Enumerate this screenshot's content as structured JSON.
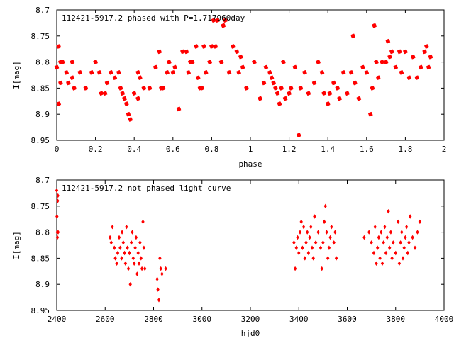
{
  "chart_data": [
    {
      "type": "scatter",
      "title": "112421-5917.2 phased with P=1.717960day",
      "xlabel": "phase",
      "ylabel": "I[mag]",
      "xlim": [
        0,
        2
      ],
      "ylim": [
        8.95,
        8.7
      ],
      "y_inverted": true,
      "grid": false,
      "marker_color": "#ff0000",
      "x_ticks": [
        "0",
        "0.2",
        "0.4",
        "0.6",
        "0.8",
        "1",
        "1.2",
        "1.4",
        "1.6",
        "1.8",
        "2"
      ],
      "y_ticks": [
        "8.7",
        "8.75",
        "8.8",
        "8.85",
        "8.9",
        "8.95"
      ],
      "points": [
        [
          0.0,
          8.81
        ],
        [
          0.01,
          8.77
        ],
        [
          0.01,
          8.88
        ],
        [
          0.02,
          8.8
        ],
        [
          0.02,
          8.84
        ],
        [
          0.03,
          8.8
        ],
        [
          0.05,
          8.82
        ],
        [
          0.06,
          8.84
        ],
        [
          0.08,
          8.83
        ],
        [
          0.08,
          8.8
        ],
        [
          0.09,
          8.85
        ],
        [
          0.12,
          8.82
        ],
        [
          0.15,
          8.85
        ],
        [
          0.18,
          8.82
        ],
        [
          0.2,
          8.8
        ],
        [
          0.22,
          8.82
        ],
        [
          0.23,
          8.86
        ],
        [
          0.25,
          8.86
        ],
        [
          0.26,
          8.84
        ],
        [
          0.28,
          8.82
        ],
        [
          0.3,
          8.83
        ],
        [
          0.32,
          8.82
        ],
        [
          0.33,
          8.85
        ],
        [
          0.34,
          8.86
        ],
        [
          0.35,
          8.87
        ],
        [
          0.36,
          8.88
        ],
        [
          0.37,
          8.9
        ],
        [
          0.38,
          8.91
        ],
        [
          0.4,
          8.86
        ],
        [
          0.42,
          8.82
        ],
        [
          0.42,
          8.87
        ],
        [
          0.43,
          8.83
        ],
        [
          0.45,
          8.85
        ],
        [
          0.48,
          8.85
        ],
        [
          0.51,
          8.81
        ],
        [
          0.53,
          8.78
        ],
        [
          0.54,
          8.85
        ],
        [
          0.55,
          8.85
        ],
        [
          0.57,
          8.82
        ],
        [
          0.58,
          8.8
        ],
        [
          0.6,
          8.82
        ],
        [
          0.61,
          8.81
        ],
        [
          0.63,
          8.89
        ],
        [
          0.65,
          8.78
        ],
        [
          0.67,
          8.78
        ],
        [
          0.68,
          8.82
        ],
        [
          0.69,
          8.8
        ],
        [
          0.7,
          8.8
        ],
        [
          0.72,
          8.77
        ],
        [
          0.73,
          8.83
        ],
        [
          0.74,
          8.85
        ],
        [
          0.75,
          8.85
        ],
        [
          0.76,
          8.77
        ],
        [
          0.77,
          8.82
        ],
        [
          0.79,
          8.8
        ],
        [
          0.8,
          8.77
        ],
        [
          0.81,
          8.72
        ],
        [
          0.82,
          8.77
        ],
        [
          0.83,
          8.72
        ],
        [
          0.85,
          8.8
        ],
        [
          0.86,
          8.73
        ],
        [
          0.87,
          8.72
        ],
        [
          0.89,
          8.82
        ],
        [
          0.91,
          8.77
        ],
        [
          0.93,
          8.78
        ],
        [
          0.94,
          8.82
        ],
        [
          0.95,
          8.79
        ],
        [
          0.96,
          8.81
        ],
        [
          0.98,
          8.85
        ],
        [
          1.02,
          8.8
        ],
        [
          1.05,
          8.87
        ],
        [
          1.07,
          8.84
        ],
        [
          1.08,
          8.81
        ],
        [
          1.1,
          8.82
        ],
        [
          1.11,
          8.83
        ],
        [
          1.12,
          8.84
        ],
        [
          1.13,
          8.85
        ],
        [
          1.14,
          8.86
        ],
        [
          1.15,
          8.88
        ],
        [
          1.16,
          8.85
        ],
        [
          1.17,
          8.8
        ],
        [
          1.18,
          8.87
        ],
        [
          1.2,
          8.86
        ],
        [
          1.21,
          8.85
        ],
        [
          1.23,
          8.81
        ],
        [
          1.25,
          8.94
        ],
        [
          1.26,
          8.85
        ],
        [
          1.28,
          8.82
        ],
        [
          1.3,
          8.86
        ],
        [
          1.33,
          8.84
        ],
        [
          1.35,
          8.8
        ],
        [
          1.37,
          8.82
        ],
        [
          1.38,
          8.86
        ],
        [
          1.4,
          8.88
        ],
        [
          1.41,
          8.86
        ],
        [
          1.43,
          8.84
        ],
        [
          1.45,
          8.85
        ],
        [
          1.46,
          8.87
        ],
        [
          1.48,
          8.82
        ],
        [
          1.5,
          8.86
        ],
        [
          1.52,
          8.82
        ],
        [
          1.53,
          8.75
        ],
        [
          1.54,
          8.84
        ],
        [
          1.56,
          8.87
        ],
        [
          1.58,
          8.81
        ],
        [
          1.6,
          8.82
        ],
        [
          1.62,
          8.9
        ],
        [
          1.63,
          8.85
        ],
        [
          1.64,
          8.73
        ],
        [
          1.65,
          8.8
        ],
        [
          1.66,
          8.83
        ],
        [
          1.68,
          8.8
        ],
        [
          1.7,
          8.8
        ],
        [
          1.71,
          8.76
        ],
        [
          1.72,
          8.79
        ],
        [
          1.73,
          8.78
        ],
        [
          1.75,
          8.81
        ],
        [
          1.77,
          8.78
        ],
        [
          1.78,
          8.82
        ],
        [
          1.8,
          8.78
        ],
        [
          1.82,
          8.83
        ],
        [
          1.84,
          8.79
        ],
        [
          1.86,
          8.83
        ],
        [
          1.88,
          8.81
        ],
        [
          1.9,
          8.78
        ],
        [
          1.91,
          8.77
        ],
        [
          1.92,
          8.81
        ],
        [
          1.93,
          8.79
        ]
      ]
    },
    {
      "type": "scatter",
      "title": "112421-5917.2 not phased light curve",
      "xlabel": "hjd0",
      "ylabel": "I[mag]",
      "xlim": [
        2400,
        4000
      ],
      "ylim": [
        8.95,
        8.7
      ],
      "y_inverted": true,
      "grid": false,
      "marker_color": "#ff0000",
      "x_ticks": [
        "2400",
        "2600",
        "2800",
        "3000",
        "3200",
        "3400",
        "3600",
        "3800",
        "4000"
      ],
      "y_ticks": [
        "8.7",
        "8.75",
        "8.8",
        "8.85",
        "8.9",
        "8.95"
      ],
      "points": [
        [
          2400,
          8.72
        ],
        [
          2401,
          8.77
        ],
        [
          2402,
          8.8
        ],
        [
          2403,
          8.81
        ],
        [
          2404,
          8.74
        ],
        [
          2405,
          8.73
        ],
        [
          2406,
          8.8
        ],
        [
          2620,
          8.81
        ],
        [
          2625,
          8.82
        ],
        [
          2630,
          8.79
        ],
        [
          2638,
          8.83
        ],
        [
          2642,
          8.85
        ],
        [
          2648,
          8.86
        ],
        [
          2652,
          8.84
        ],
        [
          2658,
          8.81
        ],
        [
          2662,
          8.83
        ],
        [
          2668,
          8.85
        ],
        [
          2670,
          8.8
        ],
        [
          2675,
          8.82
        ],
        [
          2680,
          8.84
        ],
        [
          2684,
          8.86
        ],
        [
          2688,
          8.79
        ],
        [
          2692,
          8.83
        ],
        [
          2696,
          8.87
        ],
        [
          2700,
          8.84
        ],
        [
          2704,
          8.9
        ],
        [
          2708,
          8.82
        ],
        [
          2712,
          8.8
        ],
        [
          2716,
          8.85
        ],
        [
          2720,
          8.86
        ],
        [
          2724,
          8.83
        ],
        [
          2728,
          8.81
        ],
        [
          2732,
          8.88
        ],
        [
          2736,
          8.84
        ],
        [
          2740,
          8.86
        ],
        [
          2744,
          8.82
        ],
        [
          2748,
          8.85
        ],
        [
          2752,
          8.87
        ],
        [
          2756,
          8.78
        ],
        [
          2760,
          8.83
        ],
        [
          2764,
          8.87
        ],
        [
          2815,
          8.89
        ],
        [
          2818,
          8.91
        ],
        [
          2822,
          8.93
        ],
        [
          2826,
          8.85
        ],
        [
          2830,
          8.87
        ],
        [
          2835,
          8.88
        ],
        [
          2850,
          8.87
        ],
        [
          3380,
          8.82
        ],
        [
          3385,
          8.87
        ],
        [
          3390,
          8.83
        ],
        [
          3395,
          8.81
        ],
        [
          3400,
          8.84
        ],
        [
          3405,
          8.8
        ],
        [
          3410,
          8.78
        ],
        [
          3415,
          8.83
        ],
        [
          3420,
          8.79
        ],
        [
          3425,
          8.85
        ],
        [
          3430,
          8.82
        ],
        [
          3435,
          8.8
        ],
        [
          3440,
          8.84
        ],
        [
          3445,
          8.81
        ],
        [
          3450,
          8.79
        ],
        [
          3455,
          8.83
        ],
        [
          3460,
          8.85
        ],
        [
          3465,
          8.77
        ],
        [
          3470,
          8.82
        ],
        [
          3480,
          8.8
        ],
        [
          3490,
          8.83
        ],
        [
          3495,
          8.87
        ],
        [
          3500,
          8.82
        ],
        [
          3505,
          8.78
        ],
        [
          3510,
          8.75
        ],
        [
          3515,
          8.8
        ],
        [
          3520,
          8.85
        ],
        [
          3525,
          8.83
        ],
        [
          3530,
          8.81
        ],
        [
          3535,
          8.79
        ],
        [
          3545,
          8.82
        ],
        [
          3550,
          8.8
        ],
        [
          3555,
          8.85
        ],
        [
          3670,
          8.81
        ],
        [
          3690,
          8.8
        ],
        [
          3700,
          8.82
        ],
        [
          3710,
          8.84
        ],
        [
          3715,
          8.79
        ],
        [
          3720,
          8.86
        ],
        [
          3725,
          8.83
        ],
        [
          3730,
          8.81
        ],
        [
          3735,
          8.85
        ],
        [
          3740,
          8.8
        ],
        [
          3745,
          8.86
        ],
        [
          3750,
          8.82
        ],
        [
          3755,
          8.79
        ],
        [
          3760,
          8.84
        ],
        [
          3765,
          8.81
        ],
        [
          3770,
          8.76
        ],
        [
          3775,
          8.83
        ],
        [
          3780,
          8.8
        ],
        [
          3785,
          8.85
        ],
        [
          3790,
          8.82
        ],
        [
          3800,
          8.84
        ],
        [
          3810,
          8.78
        ],
        [
          3815,
          8.86
        ],
        [
          3820,
          8.82
        ],
        [
          3825,
          8.8
        ],
        [
          3830,
          8.85
        ],
        [
          3835,
          8.83
        ],
        [
          3840,
          8.81
        ],
        [
          3845,
          8.79
        ],
        [
          3850,
          8.84
        ],
        [
          3855,
          8.82
        ],
        [
          3860,
          8.77
        ],
        [
          3870,
          8.81
        ],
        [
          3880,
          8.83
        ],
        [
          3890,
          8.8
        ],
        [
          3900,
          8.78
        ]
      ]
    }
  ]
}
